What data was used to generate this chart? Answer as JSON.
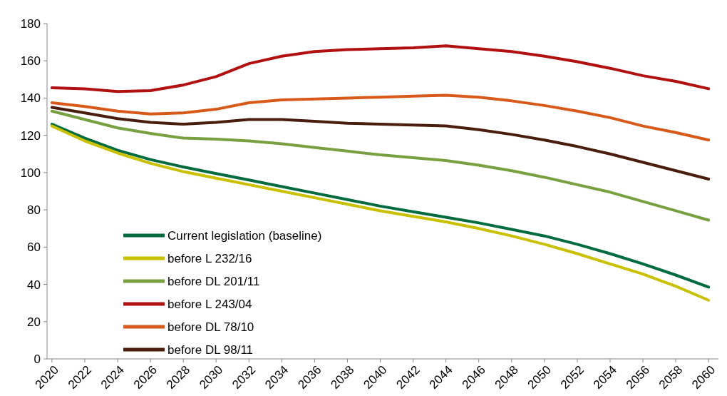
{
  "chart_data": {
    "type": "line",
    "x": [
      2020,
      2022,
      2024,
      2026,
      2028,
      2030,
      2032,
      2034,
      2036,
      2038,
      2040,
      2042,
      2044,
      2046,
      2048,
      2050,
      2052,
      2054,
      2056,
      2058,
      2060
    ],
    "xlim": [
      2019.7,
      2060.6
    ],
    "xticks": [
      2020,
      2022,
      2024,
      2026,
      2028,
      2030,
      2032,
      2034,
      2036,
      2038,
      2040,
      2042,
      2044,
      2046,
      2048,
      2050,
      2052,
      2054,
      2056,
      2058,
      2060
    ],
    "ylim": [
      0,
      180
    ],
    "yticks": [
      0,
      20,
      40,
      60,
      80,
      100,
      120,
      140,
      160,
      180
    ],
    "grid": false,
    "legend": "bottom left",
    "line_style": "solid",
    "marker": "none",
    "series": [
      {
        "name": "Current legislation (baseline)",
        "color": "#006b3f",
        "values": [
          126,
          118.5,
          112,
          107,
          103,
          99.5,
          96,
          92.5,
          89,
          85.5,
          82,
          79,
          76,
          73,
          69.5,
          66,
          61.5,
          56.5,
          51,
          45,
          38.5
        ]
      },
      {
        "name": "before L 232/16",
        "color": "#c8c000",
        "values": [
          125,
          117,
          110.5,
          105,
          100.5,
          97,
          93.5,
          90,
          86.5,
          83,
          79.5,
          76.5,
          73.5,
          70,
          66,
          61.5,
          56.5,
          51,
          45.5,
          39,
          31.5
        ]
      },
      {
        "name": "before DL 201/11",
        "color": "#78a040",
        "values": [
          133,
          128.5,
          124,
          121,
          118.5,
          118,
          117,
          115.5,
          113.5,
          111.5,
          109.5,
          108,
          106.5,
          104,
          101,
          97.5,
          93.5,
          89.5,
          84.5,
          79.5,
          74.5
        ]
      },
      {
        "name": "before L 243/04",
        "color": "#b01010",
        "values": [
          145.5,
          145,
          143.5,
          144,
          147,
          151.5,
          158.5,
          162.5,
          165,
          166,
          166.5,
          167,
          168,
          166.5,
          165,
          162.5,
          159.5,
          156,
          152,
          149,
          145
        ]
      },
      {
        "name": "before DL 78/10",
        "color": "#d85a1a",
        "values": [
          137.5,
          135.5,
          133,
          131.5,
          132,
          134,
          137.5,
          139,
          139.5,
          140,
          140.5,
          141,
          141.5,
          140.5,
          138.5,
          136,
          133,
          129.5,
          125,
          121.5,
          117.5
        ]
      },
      {
        "name": "before DL 98/11",
        "color": "#4a1e0e",
        "values": [
          135,
          132,
          129,
          127,
          126,
          127,
          128.5,
          128.5,
          127.5,
          126.5,
          126,
          125.5,
          125,
          123,
          120.5,
          117.5,
          114,
          110,
          105.5,
          101,
          96.5
        ]
      }
    ]
  }
}
